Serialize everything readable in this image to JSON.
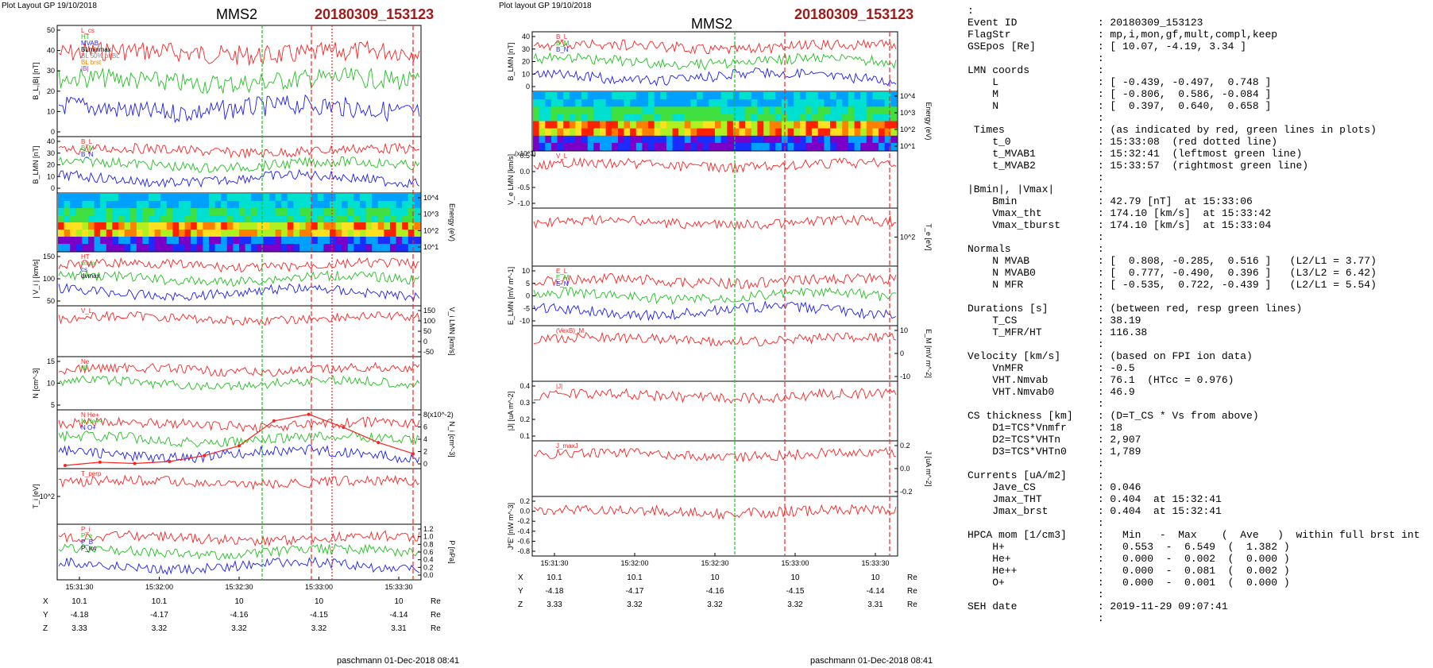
{
  "header": {
    "plot_layout": "Plot Layout GP 19/10/2018",
    "plot_layout2": "Plot layout GP 19/10/2018",
    "mission": "MMS2",
    "event": "20180309_153123"
  },
  "footer": {
    "left": "paschmann 01-Dec-2018 08:41",
    "right": "paschmann 01-Dec-2018 08:41"
  },
  "colors": {
    "red": "#ff2020",
    "green": "#20c020",
    "blue": "#1a1aff",
    "black": "#000000",
    "event": "#a01a1a"
  },
  "time_axis": {
    "ticks": [
      "15:31:30",
      "15:32:00",
      "15:32:30",
      "15:33:00",
      "15:33:30"
    ],
    "rows": [
      {
        "name": "X",
        "values": [
          "10.1",
          "10.1",
          "10",
          "10",
          "10"
        ],
        "unit": "Re"
      },
      {
        "name": "Y",
        "values": [
          "-4.18",
          "-4.17",
          "-4.16",
          "-4.15",
          "-4.14"
        ],
        "unit": "Re"
      },
      {
        "name": "Z",
        "values": [
          "3.33",
          "3.32",
          "3.32",
          "3.32",
          "3.31"
        ],
        "unit": "Re"
      }
    ]
  },
  "chart_data": [
    {
      "type": "line",
      "panel": "left",
      "panels": [
        {
          "ylabel": "B_L,|B| [nT]",
          "yticks": [
            "50",
            "40",
            "30",
            "20",
            "10",
            "0"
          ],
          "legend": [
            "L_cs",
            "HT",
            "MVAB",
            "BLminmax",
            "BL 50% of BL",
            "BL brst",
            "|B|"
          ]
        },
        {
          "ylabel": "B_LMN [nT]",
          "yticks": [
            "40",
            "30",
            "20",
            "10",
            "0"
          ],
          "legend": [
            "B_L",
            "B_M",
            "B_N"
          ]
        },
        {
          "type": "heatmap",
          "ylabel_right": "Energy (eV)",
          "yticks_right": [
            "10^4",
            "10^3",
            "10^2",
            "10^1"
          ]
        },
        {
          "ylabel": "| V_i | [km/s]",
          "yticks": [
            "150",
            "100",
            "50"
          ],
          "legend": [
            "HT",
            "vmax",
            "cs",
            "dvmax"
          ]
        },
        {
          "ylabel_right": "V_i LMN [km/s]",
          "yticks_right": [
            "150",
            "100",
            "50",
            "0",
            "-50"
          ],
          "legend": [
            "V_L"
          ]
        },
        {
          "ylabel": "N [cm^-3]",
          "yticks": [
            "15",
            "10",
            "5"
          ],
          "legend": [
            "Ne",
            "Ni"
          ]
        },
        {
          "ylabel_right": "N_i [cm^-3]",
          "yticks_right": [
            "8(x10^-2)",
            "6",
            "4",
            "2",
            "0"
          ],
          "legend": [
            "N He+",
            "N He++",
            "N O+"
          ],
          "series": [
            {
              "name": "N He++",
              "x": [
                "15:31:23",
                "15:31:37",
                "15:31:52",
                "15:32:07",
                "15:32:21",
                "15:32:36",
                "15:32:51",
                "15:33:05",
                "15:33:20",
                "15:33:35",
                "15:33:50"
              ],
              "values": [
                0.0,
                0.5,
                0.3,
                0.6,
                1.5,
                3.0,
                6.8,
                7.8,
                5.8,
                3.5,
                1.8
              ]
            }
          ]
        },
        {
          "ylabel": "T_i [eV]",
          "yticks": [
            "10^2"
          ],
          "legend": [
            "T_perp"
          ]
        },
        {
          "ylabel_right": "P [nPa]",
          "yticks_right": [
            "1.2",
            "1.0",
            "0.8",
            "0.6",
            "0.4",
            "0.2",
            "0.0"
          ],
          "legend": [
            "P_i",
            "P_e",
            "P_B",
            "P_tot"
          ]
        }
      ]
    },
    {
      "type": "line",
      "panel": "right",
      "panels": [
        {
          "ylabel": "B_LMN [nT]",
          "yticks": [
            "40",
            "30",
            "20",
            "10",
            "0"
          ],
          "legend": [
            "B_L",
            "B_M",
            "B_N"
          ]
        },
        {
          "type": "heatmap",
          "ylabel_right": "Energy (eV)",
          "yticks_right": [
            "10^4",
            "10^3",
            "10^2",
            "10^1"
          ]
        },
        {
          "ylabel": "V_e LMN [km/s]",
          "yticks": [
            "0.5",
            "0.0",
            "-0.5",
            "-1.0"
          ],
          "scale_note": "(x10^3)",
          "legend": [
            "V_L"
          ]
        },
        {
          "ylabel_right": "T_e [eV]",
          "yticks_right": [
            "10^2"
          ]
        },
        {
          "ylabel": "E_LMN [mV m^-1]",
          "yticks": [
            "10",
            "5",
            "0",
            "-5",
            "-10"
          ],
          "legend": [
            "E_L",
            "E_M",
            "E_N"
          ]
        },
        {
          "ylabel_right": "E_M [mV m^-2]",
          "yticks_right": [
            "10",
            "0",
            "-10"
          ],
          "legend": [
            "(VexB)_M"
          ]
        },
        {
          "ylabel": "|J| [uA m^-2]",
          "yticks": [
            "0.4",
            "0.3",
            "0.2",
            "0.1"
          ],
          "legend": [
            "|J|"
          ]
        },
        {
          "ylabel_right": "J [uA m^-2]",
          "yticks_right": [
            "0.2",
            "0.0",
            "-0.2"
          ],
          "legend": [
            "J_maxJ"
          ]
        },
        {
          "ylabel": "J*E' [nW m^-3]",
          "yticks": [
            "0.2",
            "0.0",
            "-0.2",
            "-0.4",
            "-0.6",
            "-0.8"
          ]
        }
      ]
    }
  ],
  "info_lines": [
    ":",
    "Event ID             : 20180309_153123",
    "FlagStr              : mp,i,mon,gf,mult,compl,keep",
    "GSEpos [Re]          : [ 10.07, -4.19, 3.34 ]",
    "                     :",
    "LMN coords           :",
    "    L                : [ -0.439, -0.497,  0.748 ]",
    "    M                : [ -0.806,  0.586, -0.084 ]",
    "    N                : [  0.397,  0.640,  0.658 ]",
    "                     :",
    " Times               : (as indicated by red, green lines in plots)",
    "    t_0              : 15:33:08  (red dotted line)",
    "    t_MVAB1          : 15:32:41  (leftmost green line)",
    "    t_MVAB2          : 15:33:57  (rightmost green line)",
    "                     :",
    "|Bmin|, |Vmax|       :",
    "    Bmin             : 42.79 [nT]  at 15:33:06",
    "    Vmax_tht         : 174.10 [km/s]  at 15:33:42",
    "    Vmax_tburst      : 174.10 [km/s]  at 15:33:04",
    "                     :",
    "Normals              :",
    "    N MVAB           : [  0.808, -0.285,  0.516 ]   (L2/L1 = 3.77)",
    "    N MVAB0          : [  0.777, -0.490,  0.396 ]   (L3/L2 = 6.42)",
    "    N MFR            : [ -0.535,  0.722, -0.439 ]   (L2/L1 = 5.54)",
    "                     :",
    "Durations [s]        : (between red, resp green lines)",
    "    T_CS             : 38.19",
    "    T_MFR/HT         : 116.38",
    "                     :",
    "Velocity [km/s]      : (based on FPI ion data)",
    "    VnMFR            : -0.5",
    "    VHT.Nmvab        : 76.1  (HTcc = 0.976)",
    "    VHT.Nmvab0       : 46.9",
    "                     :",
    "CS thickness [km]    : (D=T_CS * Vs from above)",
    "    D1=TCS*Vnmfr     : 18",
    "    D2=TCS*VHTn      : 2,907",
    "    D3=TCS*VHTn0     : 1,789",
    "                     :",
    "Currents [uA/m2]     :",
    "    Jave_CS          : 0.046",
    "    Jmax_THT         : 0.404  at 15:32:41",
    "    Jmax_brst        : 0.404  at 15:32:41",
    "                     :",
    "HPCA mom [1/cm3]     :   Min   -  Max    (  Ave   )  within full brst int",
    "    H+               :   0.553  -  6.549  (  1.382 )",
    "    He+              :   0.000  -  0.002  (  0.000 )",
    "    He++             :   0.000  -  0.081  (  0.002 )",
    "    O+               :   0.000  -  0.001  (  0.000 )",
    "                     :",
    "SEH date             : 2019-11-29 09:07:41",
    "                     :"
  ]
}
